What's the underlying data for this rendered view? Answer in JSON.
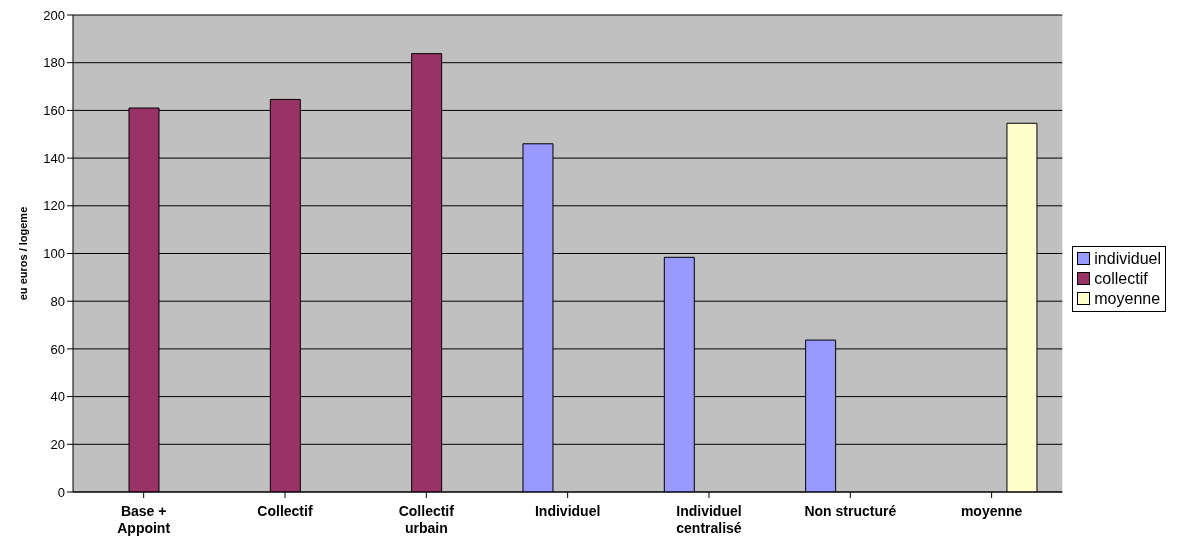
{
  "chart_data": {
    "type": "bar",
    "ylabel": "eu euros / logeme",
    "categories": [
      "Base +\nAppoint",
      "Collectif",
      "Collectif\nurbain",
      "Individuel",
      "Individuel\ncentralisé",
      "Non structuré",
      "moyenne"
    ],
    "series": [
      {
        "name": "individuel",
        "color": "#9999ff",
        "values": [
          null,
          null,
          null,
          146,
          98.4,
          63.7,
          null
        ]
      },
      {
        "name": "collectif",
        "color": "#993366",
        "values": [
          161,
          164.6,
          183.8,
          null,
          null,
          null,
          null
        ]
      },
      {
        "name": "moyenne",
        "color": "#ffffcc",
        "values": [
          null,
          null,
          null,
          null,
          null,
          null,
          154.6
        ]
      }
    ],
    "ylim": [
      0,
      200
    ],
    "yticks": [
      0,
      20,
      40,
      60,
      80,
      100,
      120,
      140,
      160,
      180,
      200
    ],
    "grid": "y",
    "legend": "right"
  }
}
